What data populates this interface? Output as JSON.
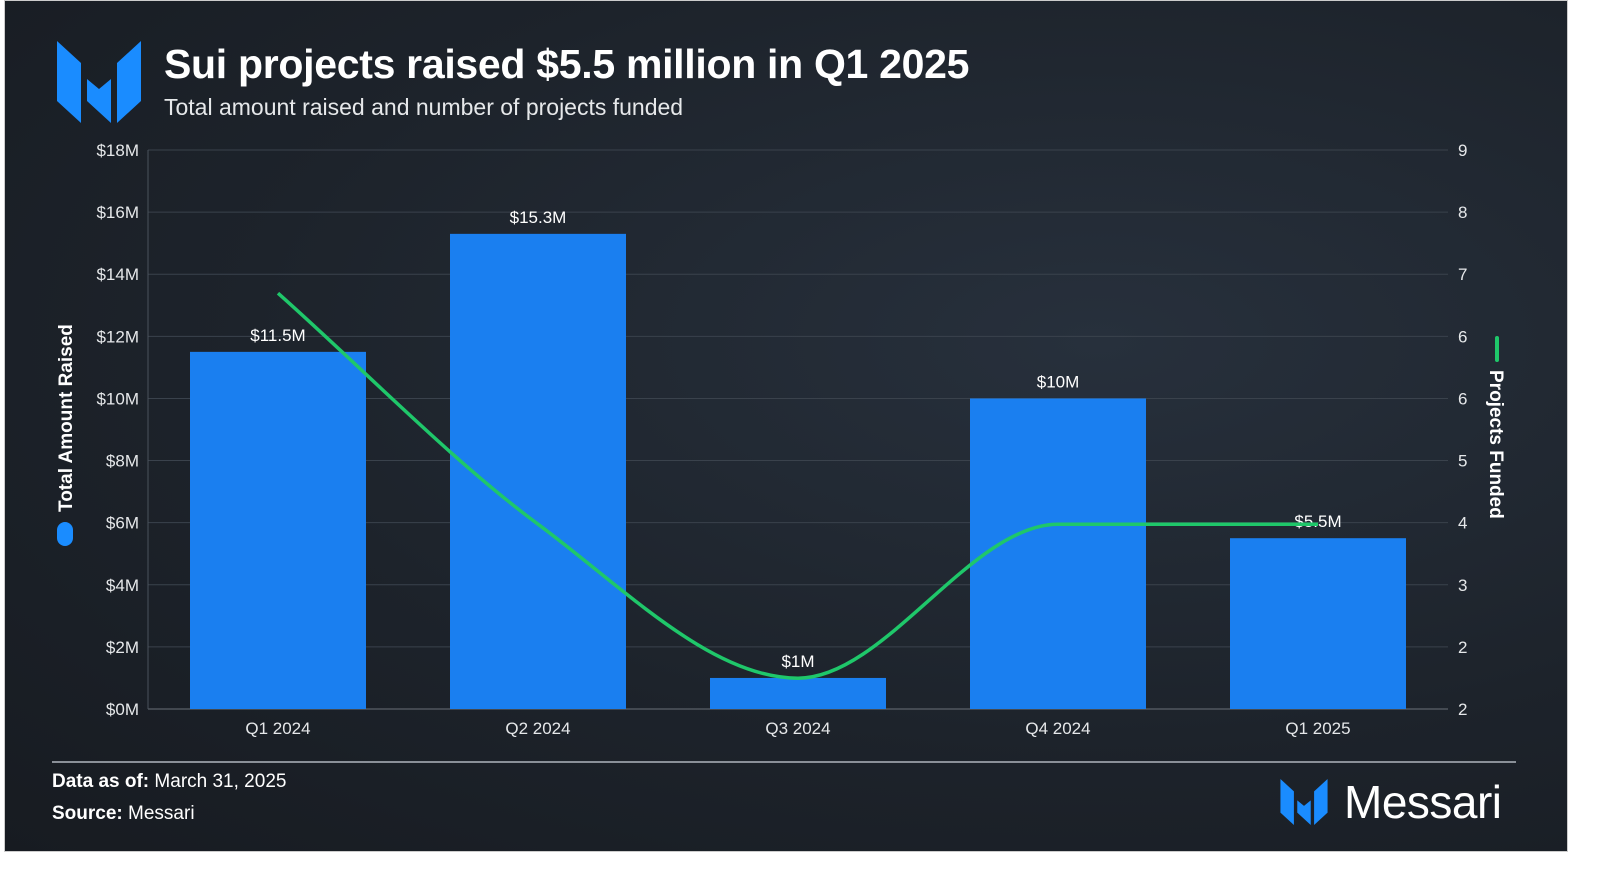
{
  "header": {
    "title": "Sui projects raised $5.5 million in Q1 2025",
    "subtitle": "Total amount raised and number of projects funded",
    "logo_icon": "messari-m-icon"
  },
  "footer": {
    "data_as_of_label": "Data as of:",
    "data_as_of_value": "March 31, 2025",
    "source_label": "Source:",
    "source_value": "Messari",
    "brand": "Messari"
  },
  "colors": {
    "bar": "#1a7ff0",
    "line": "#1fc76a",
    "accent": "#1a8cff"
  },
  "chart_data": {
    "type": "bar+line",
    "categories": [
      "Q1 2024",
      "Q2 2024",
      "Q3 2024",
      "Q4 2024",
      "Q1 2025"
    ],
    "series": [
      {
        "name": "Total Amount Raised",
        "type": "bar",
        "axis": "left",
        "values": [
          11.5,
          15.3,
          1,
          10,
          5.5
        ],
        "data_labels": [
          "$11.5M",
          "$15.3M",
          "$1M",
          "$10M",
          "$5.5M"
        ]
      },
      {
        "name": "Projects Funded",
        "type": "line",
        "axis": "right",
        "values": [
          7,
          4,
          2,
          4,
          4
        ]
      }
    ],
    "left_axis": {
      "label": "Total Amount Raised",
      "ylim": [
        0,
        18
      ],
      "tick_labels": [
        "$0M",
        "$2M",
        "$4M",
        "$6M",
        "$8M",
        "$10M",
        "$12M",
        "$14M",
        "$16M",
        "$18M"
      ]
    },
    "right_axis": {
      "label": "Projects Funded",
      "ylim": [
        1.6,
        8.86
      ],
      "tick_labels": [
        "2",
        "2",
        "3",
        "4",
        "5",
        "6",
        "6",
        "7",
        "8",
        "9"
      ]
    },
    "grid": true,
    "legend": "axis labels"
  }
}
